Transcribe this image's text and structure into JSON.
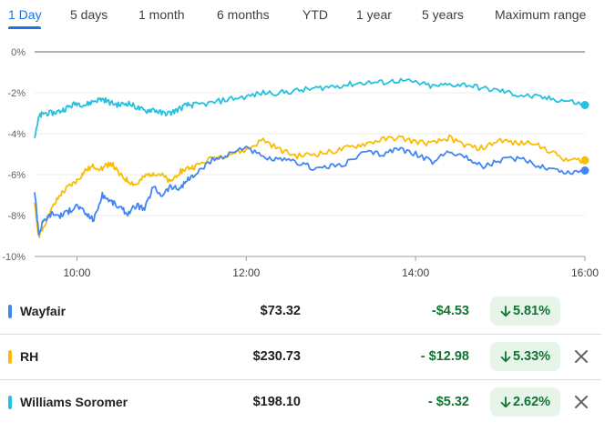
{
  "tabs": [
    {
      "label": "1 Day",
      "active": true
    },
    {
      "label": "5 days",
      "active": false
    },
    {
      "label": "1 month",
      "active": false
    },
    {
      "label": "6 months",
      "active": false
    },
    {
      "label": "YTD",
      "active": false
    },
    {
      "label": "1 year",
      "active": false
    },
    {
      "label": "5 years",
      "active": false
    },
    {
      "label": "Maximum range",
      "active": false
    }
  ],
  "rows": [
    {
      "name": "Wayfair",
      "price": "$73.32",
      "change": "-$4.53",
      "percent": "5.81%",
      "color": "#4285f4",
      "removable": false,
      "direction_icon": "arrow-down-icon"
    },
    {
      "name": "RH",
      "price": "$230.73",
      "change": "- $12.98",
      "percent": "5.33%",
      "color": "#fbbc04",
      "removable": true,
      "direction_icon": "arrow-down-icon"
    },
    {
      "name": "Williams Soromer",
      "price": "$198.10",
      "change": "- $5.32",
      "percent": "2.62%",
      "color": "#24c1e0",
      "removable": true,
      "direction_icon": "arrow-down-icon"
    }
  ],
  "chart_data": {
    "type": "line",
    "ylabel": "",
    "xlabel": "",
    "y_ticks": [
      "0%",
      "-2%",
      "-4%",
      "-6%",
      "-8%",
      "-10%"
    ],
    "y_tick_values": [
      0,
      -2,
      -4,
      -6,
      -8,
      -10
    ],
    "ylim": [
      -10,
      0
    ],
    "x_ticks": [
      "10:00",
      "12:00",
      "14:00",
      "16:00"
    ],
    "x_tick_values": [
      10,
      12,
      14,
      16
    ],
    "xlim": [
      9.5,
      16
    ],
    "grid": true,
    "series": [
      {
        "name": "Wayfair",
        "color": "#4285f4",
        "x": [
          9.5,
          9.55,
          9.6,
          9.7,
          9.8,
          9.9,
          10.0,
          10.1,
          10.2,
          10.3,
          10.4,
          10.5,
          10.6,
          10.7,
          10.8,
          10.9,
          11.0,
          11.1,
          11.2,
          11.3,
          11.4,
          11.6,
          11.8,
          12.0,
          12.2,
          12.4,
          12.6,
          12.8,
          13.0,
          13.2,
          13.4,
          13.6,
          13.8,
          14.0,
          14.2,
          14.4,
          14.6,
          14.8,
          15.0,
          15.2,
          15.4,
          15.6,
          15.8,
          16.0
        ],
        "values": [
          -6.8,
          -8.9,
          -8.3,
          -7.9,
          -8.0,
          -7.8,
          -7.5,
          -7.9,
          -8.2,
          -7.0,
          -7.3,
          -7.6,
          -7.9,
          -7.5,
          -7.7,
          -6.6,
          -7.0,
          -6.6,
          -6.7,
          -6.3,
          -6.0,
          -5.3,
          -5.0,
          -4.6,
          -5.2,
          -5.3,
          -5.4,
          -5.7,
          -5.6,
          -5.4,
          -4.9,
          -5.0,
          -4.7,
          -5.0,
          -5.4,
          -4.8,
          -5.2,
          -5.6,
          -5.3,
          -5.2,
          -5.5,
          -5.7,
          -5.9,
          -5.8
        ]
      },
      {
        "name": "RH",
        "color": "#fbbc04",
        "x": [
          9.5,
          9.55,
          9.6,
          9.7,
          9.8,
          9.9,
          10.0,
          10.1,
          10.2,
          10.3,
          10.4,
          10.5,
          10.6,
          10.7,
          10.8,
          10.9,
          11.0,
          11.1,
          11.2,
          11.3,
          11.4,
          11.6,
          11.8,
          12.0,
          12.2,
          12.4,
          12.6,
          12.8,
          13.0,
          13.2,
          13.4,
          13.6,
          13.8,
          14.0,
          14.2,
          14.4,
          14.6,
          14.8,
          15.0,
          15.2,
          15.4,
          15.6,
          15.8,
          16.0
        ],
        "values": [
          -7.5,
          -9.0,
          -8.6,
          -7.7,
          -7.0,
          -6.6,
          -6.3,
          -5.8,
          -5.6,
          -5.7,
          -5.4,
          -6.0,
          -6.3,
          -6.5,
          -6.1,
          -5.9,
          -6.0,
          -6.4,
          -5.9,
          -5.7,
          -5.6,
          -5.2,
          -5.0,
          -4.8,
          -4.3,
          -4.8,
          -5.1,
          -5.0,
          -4.9,
          -4.7,
          -4.5,
          -4.3,
          -4.2,
          -4.4,
          -4.5,
          -4.2,
          -4.6,
          -4.7,
          -4.3,
          -4.5,
          -4.4,
          -4.9,
          -5.3,
          -5.3
        ]
      },
      {
        "name": "Williams Soromer",
        "color": "#24c1e0",
        "x": [
          9.5,
          9.55,
          9.6,
          9.7,
          9.8,
          9.9,
          10.0,
          10.1,
          10.2,
          10.3,
          10.4,
          10.5,
          10.6,
          10.7,
          10.8,
          10.9,
          11.0,
          11.1,
          11.2,
          11.3,
          11.4,
          11.6,
          11.8,
          12.0,
          12.2,
          12.4,
          12.6,
          12.8,
          13.0,
          13.2,
          13.4,
          13.6,
          13.8,
          14.0,
          14.2,
          14.4,
          14.6,
          14.8,
          15.0,
          15.2,
          15.4,
          15.6,
          15.8,
          16.0
        ],
        "values": [
          -4.1,
          -3.2,
          -3.0,
          -3.0,
          -2.9,
          -2.7,
          -2.5,
          -2.6,
          -2.4,
          -2.3,
          -2.5,
          -2.6,
          -2.5,
          -2.7,
          -2.9,
          -2.8,
          -3.0,
          -3.0,
          -2.8,
          -2.6,
          -2.6,
          -2.5,
          -2.3,
          -2.2,
          -2.0,
          -2.0,
          -1.9,
          -1.8,
          -1.7,
          -1.6,
          -1.5,
          -1.5,
          -1.4,
          -1.5,
          -1.7,
          -1.6,
          -1.6,
          -1.8,
          -1.9,
          -2.1,
          -2.2,
          -2.3,
          -2.4,
          -2.6
        ]
      }
    ]
  }
}
